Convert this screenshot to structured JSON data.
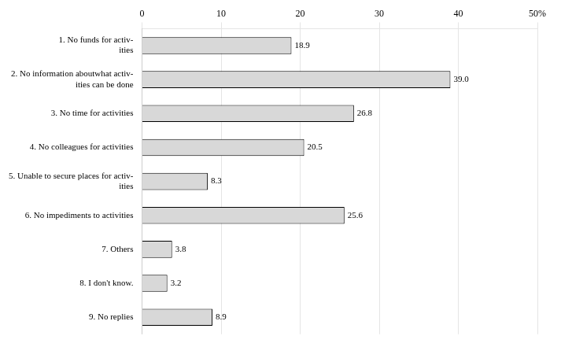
{
  "chart_data": {
    "type": "bar",
    "orientation": "horizontal",
    "categories": [
      "1. No funds for activ-\n   ities",
      "2. No information aboutwhat activ-\n   ities can be done",
      "3. No time for activities",
      "4. No colleagues for activities",
      "5. Unable to secure places for activ-\n   ities",
      "6. No impediments to activities",
      "7. Others",
      "8. I don't know.",
      "9. No replies"
    ],
    "values": [
      18.9,
      39.0,
      26.8,
      20.5,
      8.3,
      25.6,
      3.8,
      3.2,
      8.9
    ],
    "value_labels": [
      "18.9",
      "39.0",
      "26.8",
      "20.5",
      "8.3",
      "25.6",
      "3.8",
      "3.2",
      "8.9"
    ],
    "data_labels": true,
    "color": "#d8d8d8",
    "xlim": [
      0,
      50
    ],
    "xticks": [
      0,
      10,
      20,
      30,
      40,
      {
        "value": 50,
        "label": "50%"
      }
    ],
    "grid": true
  }
}
